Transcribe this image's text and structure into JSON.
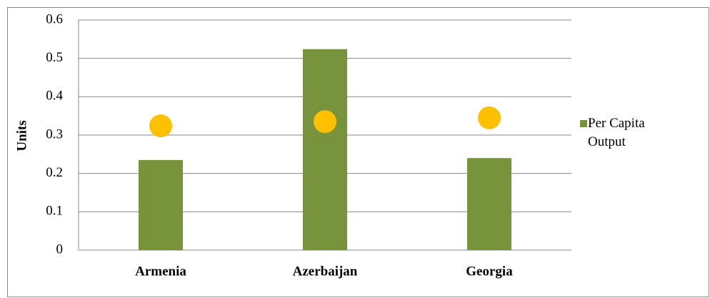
{
  "chart_data": {
    "type": "bar",
    "categories": [
      "Armenia",
      "Azerbaijan",
      "Georgia"
    ],
    "series": [
      {
        "name": "Per Capita Output",
        "type": "bar",
        "color": "#77933c",
        "values": [
          0.235,
          0.524,
          0.24
        ]
      },
      {
        "type": "scatter",
        "color": "#ffc000",
        "values": [
          0.324,
          0.335,
          0.345
        ]
      }
    ],
    "y_label": "Units",
    "ylim": [
      0,
      0.6
    ],
    "yticks": [
      0,
      0.1,
      0.2,
      0.3,
      0.4,
      0.5,
      0.6
    ],
    "grid": true,
    "legend": "right"
  }
}
